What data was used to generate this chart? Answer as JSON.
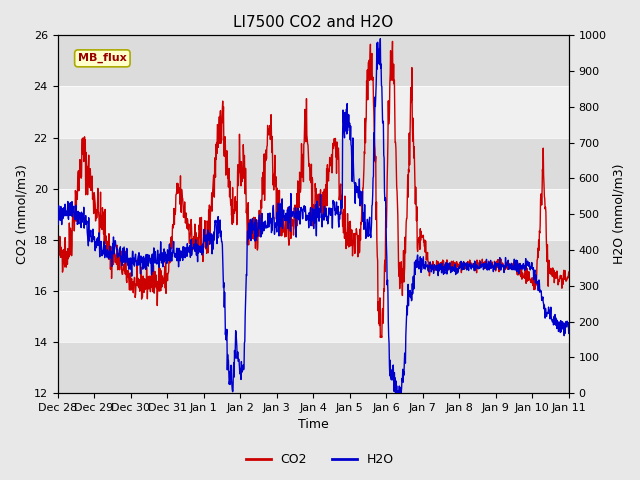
{
  "title": "LI7500 CO2 and H2O",
  "xlabel": "Time",
  "ylabel_left": "CO2 (mmol/m3)",
  "ylabel_right": "H2O (mmol/m3)",
  "ylim_left": [
    12,
    26
  ],
  "ylim_right": [
    0,
    1000
  ],
  "yticks_left": [
    12,
    14,
    16,
    18,
    20,
    22,
    24,
    26
  ],
  "yticks_right": [
    0,
    100,
    200,
    300,
    400,
    500,
    600,
    700,
    800,
    900,
    1000
  ],
  "xtick_labels": [
    "Dec 28",
    "Dec 29",
    "Dec 30",
    "Dec 31",
    "Jan 1",
    "Jan 2",
    "Jan 3",
    "Jan 4",
    "Jan 5",
    "Jan 6",
    "Jan 7",
    "Jan 8",
    "Jan 9",
    "Jan 10",
    "Jan 11"
  ],
  "co2_color": "#CC0000",
  "h2o_color": "#0000CC",
  "fig_bg_color": "#E8E8E8",
  "plot_bg_color": "#FFFFFF",
  "band_dark": "#DCDCDC",
  "band_light": "#F0F0F0",
  "annotation_text": "MB_flux",
  "annotation_bg": "#FFFFCC",
  "annotation_border": "#CCCC00",
  "legend_co2": "CO2",
  "legend_h2o": "H2O",
  "title_fontsize": 11,
  "axis_label_fontsize": 9,
  "tick_fontsize": 8,
  "linewidth": 1.0
}
